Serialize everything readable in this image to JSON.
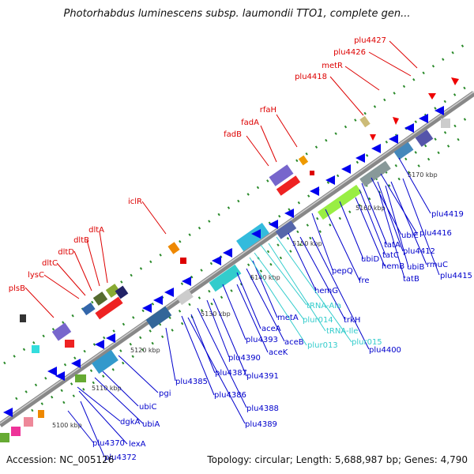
{
  "title": "Photorhabdus luminescens subsp. laumondii TTO1, complete gen...",
  "footer": {
    "accession": "Accession: NC_005126",
    "topology": "Topology: circular; Length: 5,688,987 bp; Genes: 4,790"
  },
  "colors": {
    "backbone": "#888888",
    "red_labels": "#dd0000",
    "blue_labels": "#0000cc",
    "cyan_labels": "#33cccc",
    "tick": "#227722",
    "scale_text": "#333333"
  },
  "scale_ticks": [
    {
      "label": "5100 kbp"
    },
    {
      "label": "5110 kbp"
    },
    {
      "label": "5120 kbp"
    },
    {
      "label": "5130 kbp"
    },
    {
      "label": "5140 kbp"
    },
    {
      "label": "5150 kbp"
    },
    {
      "label": "5160 kbp"
    },
    {
      "label": "5170 kbp"
    }
  ],
  "red_genes": [
    {
      "label": "plu4427"
    },
    {
      "label": "plu4426"
    },
    {
      "label": "metR"
    },
    {
      "label": "plu4418"
    },
    {
      "label": "rfaH"
    },
    {
      "label": "fadA"
    },
    {
      "label": "fadB"
    },
    {
      "label": "iclR"
    },
    {
      "label": "dltA"
    },
    {
      "label": "dltB"
    },
    {
      "label": "dltD"
    },
    {
      "label": "dltC"
    },
    {
      "label": "lysC"
    },
    {
      "label": "plsB"
    }
  ],
  "blue_genes": [
    {
      "label": "plu4419"
    },
    {
      "label": "plu4416"
    },
    {
      "label": "ubiE"
    },
    {
      "label": "tatA"
    },
    {
      "label": "plu4412"
    },
    {
      "label": "tatC"
    },
    {
      "label": "rmuC"
    },
    {
      "label": "ubiB"
    },
    {
      "label": "plu4415"
    },
    {
      "label": "ubiD"
    },
    {
      "label": "hemB"
    },
    {
      "label": "tatB"
    },
    {
      "label": "pepQ"
    },
    {
      "label": "fre"
    },
    {
      "label": "hemG"
    },
    {
      "label": "trkH"
    },
    {
      "label": "metA"
    },
    {
      "label": "plu4400"
    },
    {
      "label": "aceA"
    },
    {
      "label": "aceB"
    },
    {
      "label": "plu4393"
    },
    {
      "label": "aceK"
    },
    {
      "label": "plu4390"
    },
    {
      "label": "plu4391"
    },
    {
      "label": "plu4387"
    },
    {
      "label": "plu4385"
    },
    {
      "label": "plu4386"
    },
    {
      "label": "plu4388"
    },
    {
      "label": "plu4389"
    },
    {
      "label": "pgi"
    },
    {
      "label": "ubiC"
    },
    {
      "label": "ubiA"
    },
    {
      "label": "dgkA"
    },
    {
      "label": "lexA"
    },
    {
      "label": "plu4370"
    },
    {
      "label": "plu4372"
    }
  ],
  "cyan_genes": [
    {
      "label": "tRNA-Ala"
    },
    {
      "label": "plur014"
    },
    {
      "label": "tRNA-Ile"
    },
    {
      "label": "plur013"
    },
    {
      "label": "plur015"
    }
  ]
}
